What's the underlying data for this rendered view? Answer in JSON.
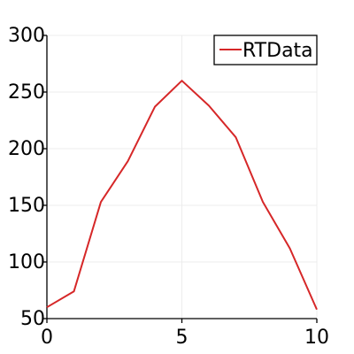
{
  "chart_data": {
    "type": "line",
    "title": "",
    "xlabel": "",
    "ylabel": "",
    "xlim": [
      0,
      10
    ],
    "ylim": [
      50,
      300
    ],
    "x_ticks": [
      0,
      5,
      10
    ],
    "y_ticks": [
      50,
      100,
      150,
      200,
      250,
      300
    ],
    "x_tick_labels": [
      "0",
      "5",
      "10"
    ],
    "y_tick_labels": [
      "50",
      "100",
      "150",
      "200",
      "250",
      "300"
    ],
    "grid": true,
    "legend_position": "top-right",
    "series": [
      {
        "name": "RTData",
        "color": "#d62728",
        "x": [
          0,
          1,
          2,
          3,
          4,
          5,
          6,
          7,
          8,
          9,
          10
        ],
        "y": [
          60,
          74,
          153,
          189,
          237,
          260,
          238,
          210,
          153,
          112,
          58
        ]
      }
    ]
  }
}
